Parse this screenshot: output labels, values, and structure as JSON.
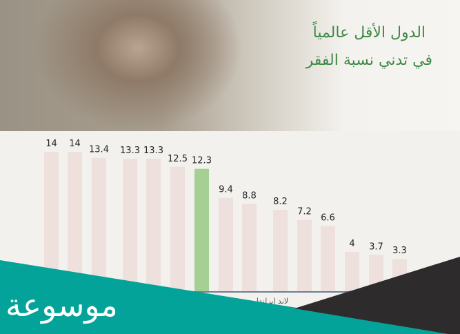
{
  "title": {
    "line1": "الدول الأقل عالمياً",
    "line2": "في تدني نسبة الفقر"
  },
  "chart_data": {
    "type": "bar",
    "values": [
      14,
      14,
      13.4,
      13.3,
      13.3,
      12.5,
      12.3,
      9.4,
      8.8,
      8.2,
      7.2,
      6.6,
      4,
      3.7,
      3.3
    ],
    "value_labels": [
      "14",
      "14",
      "13.4",
      "13.3",
      "13.3",
      "12.5",
      "12.3",
      "9.4",
      "8.8",
      "8.2",
      "7.2",
      "6.6",
      "4",
      "3.7",
      "3.3"
    ],
    "highlight_index": 6,
    "partial_axis_text": "لاند ايرلندا",
    "bar_color": "#eee0dc",
    "highlight_color": "#a6cf94",
    "axis_color": "#6d7f95",
    "grid": false
  },
  "logo": {
    "text": "موسوعة",
    "teal": "#04a39a",
    "dark": "#2d2b2c"
  }
}
